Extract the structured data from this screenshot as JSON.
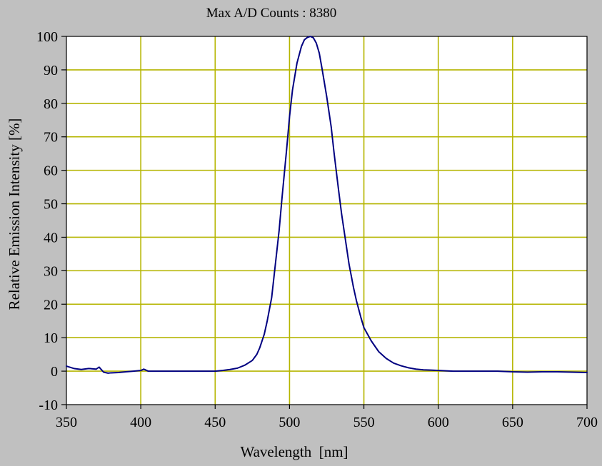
{
  "chart_data": {
    "type": "line",
    "title": "Max A/D Counts : 8380",
    "xlabel": "Wavelength  [nm]",
    "ylabel": "Relative Emission Intensity [%]",
    "xlim": [
      350,
      700
    ],
    "ylim": [
      -10,
      100
    ],
    "xticks": [
      350,
      400,
      450,
      500,
      550,
      600,
      650,
      700
    ],
    "yticks": [
      -10,
      0,
      10,
      20,
      30,
      40,
      50,
      60,
      70,
      80,
      90,
      100
    ],
    "grid": true,
    "series": [
      {
        "name": "Relative Emission Intensity",
        "x": [
          350,
          355,
          360,
          365,
          370,
          372,
          375,
          378,
          380,
          385,
          390,
          395,
          400,
          402,
          405,
          410,
          420,
          430,
          440,
          450,
          455,
          460,
          465,
          470,
          475,
          478,
          480,
          483,
          485,
          488,
          490,
          493,
          495,
          498,
          500,
          502,
          505,
          508,
          510,
          512,
          514,
          515,
          516,
          518,
          520,
          522,
          525,
          528,
          530,
          533,
          535,
          538,
          540,
          543,
          545,
          548,
          550,
          555,
          560,
          565,
          570,
          575,
          580,
          585,
          590,
          595,
          600,
          610,
          620,
          630,
          640,
          650,
          660,
          670,
          680,
          690,
          700
        ],
        "y": [
          1.5,
          0.8,
          0.5,
          0.8,
          0.6,
          1.2,
          -0.3,
          -0.6,
          -0.5,
          -0.4,
          -0.2,
          0,
          0.2,
          0.6,
          0,
          0,
          0,
          0,
          0,
          0,
          0.2,
          0.5,
          0.9,
          1.8,
          3.2,
          5,
          7,
          11,
          15,
          22,
          30,
          42,
          52,
          66,
          76,
          84,
          92,
          97,
          99,
          99.7,
          100,
          99.8,
          99.6,
          98,
          95,
          90,
          82,
          73,
          65,
          54,
          47,
          38,
          32,
          25,
          21,
          16,
          13,
          9,
          5.8,
          3.8,
          2.4,
          1.6,
          1,
          0.6,
          0.4,
          0.3,
          0.2,
          0,
          0,
          0,
          0,
          -0.2,
          -0.3,
          -0.2,
          -0.2,
          -0.3,
          -0.4
        ],
        "color": "#000080"
      }
    ],
    "colors": {
      "frame_bg": "#c0c0c0",
      "plot_bg": "#ffffff",
      "grid": "#b5b500",
      "line": "#000080",
      "axis": "#000000"
    }
  }
}
